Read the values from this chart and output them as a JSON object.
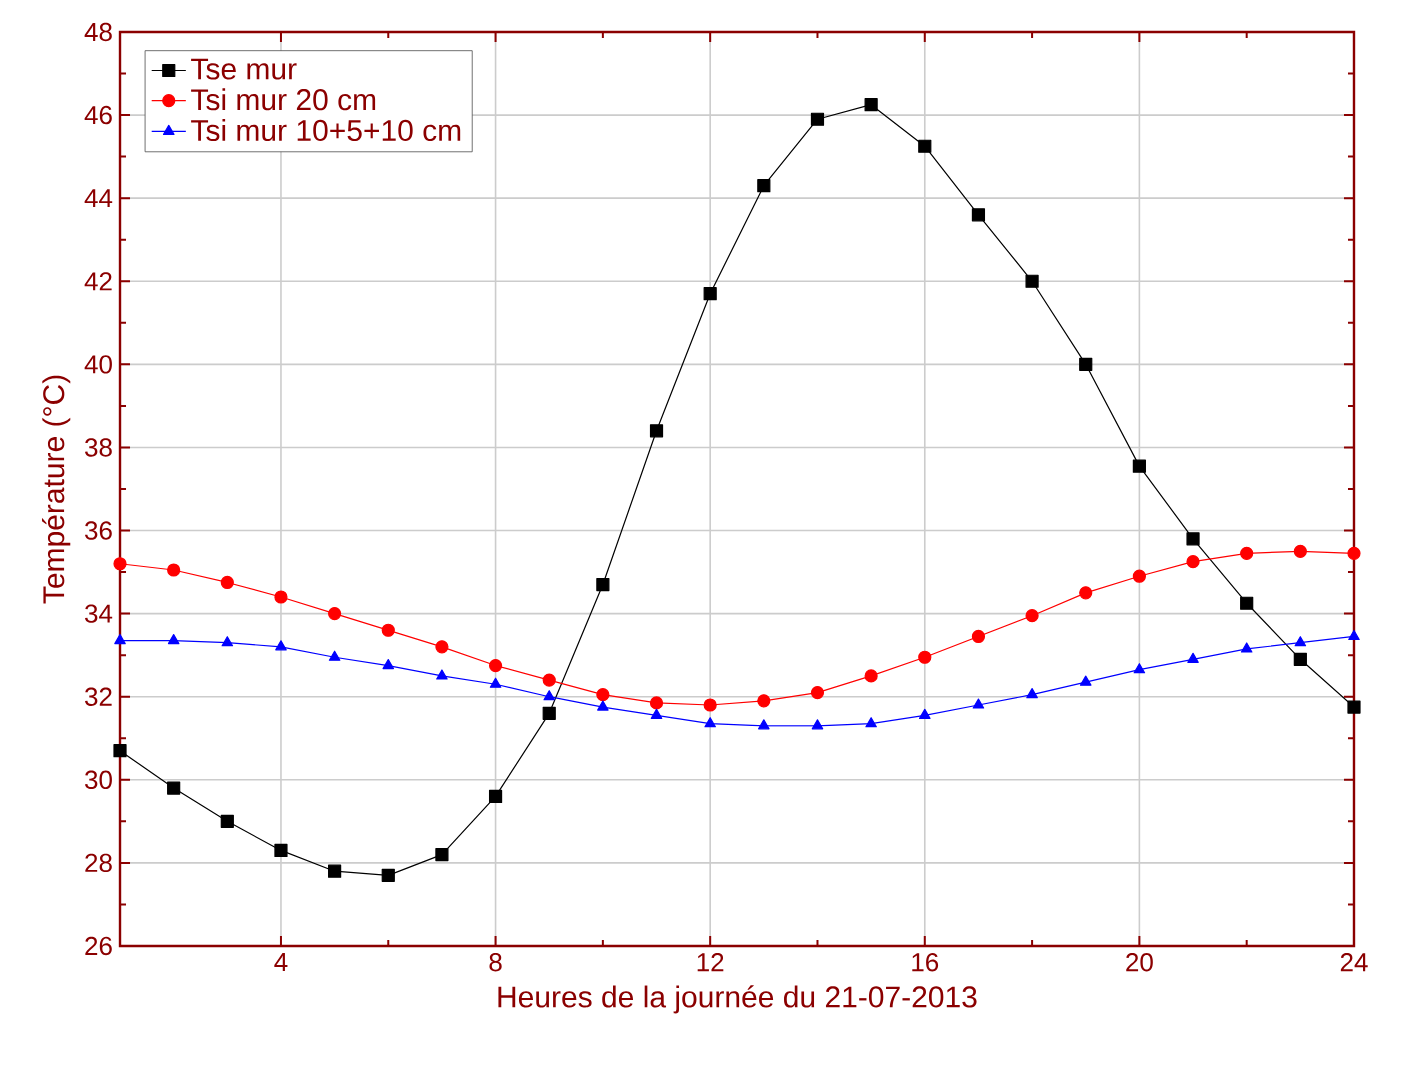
{
  "chart_data": {
    "type": "line",
    "xlabel": "Heures de la journée du 21-07-2013",
    "ylabel": "Température (°C)",
    "x": [
      1,
      2,
      3,
      4,
      5,
      6,
      7,
      8,
      9,
      10,
      11,
      12,
      13,
      14,
      15,
      16,
      17,
      18,
      19,
      20,
      21,
      22,
      23,
      24
    ],
    "series": [
      {
        "name": "Tse mur",
        "color": "#000000",
        "marker": "square",
        "values": [
          30.7,
          29.8,
          29.0,
          28.3,
          27.8,
          27.7,
          28.2,
          29.6,
          31.6,
          34.7,
          38.4,
          41.7,
          44.3,
          45.9,
          46.25,
          45.25,
          43.6,
          42.0,
          40.0,
          37.55,
          35.8,
          34.25,
          32.9,
          31.75
        ]
      },
      {
        "name": "Tsi mur 20 cm",
        "color": "#ff0000",
        "marker": "circle",
        "values": [
          35.2,
          35.05,
          34.75,
          34.4,
          34.0,
          33.6,
          33.2,
          32.75,
          32.4,
          32.05,
          31.85,
          31.8,
          31.9,
          32.1,
          32.5,
          32.95,
          33.45,
          33.95,
          34.5,
          34.9,
          35.25,
          35.45,
          35.5,
          35.45
        ]
      },
      {
        "name": "Tsi mur 10+5+10 cm",
        "color": "#0000ff",
        "marker": "triangle",
        "values": [
          33.35,
          33.35,
          33.3,
          33.2,
          32.95,
          32.75,
          32.5,
          32.3,
          32.0,
          31.75,
          31.55,
          31.35,
          31.3,
          31.3,
          31.35,
          31.55,
          31.8,
          32.05,
          32.35,
          32.65,
          32.9,
          33.15,
          33.3,
          33.45
        ]
      }
    ],
    "xlim": [
      1,
      24
    ],
    "xticks": [
      4,
      8,
      12,
      16,
      20,
      24
    ],
    "ylim": [
      26,
      48
    ],
    "yticks": [
      26,
      28,
      30,
      32,
      34,
      36,
      38,
      40,
      42,
      44,
      46,
      48
    ],
    "grid": true,
    "legend": "top left"
  }
}
